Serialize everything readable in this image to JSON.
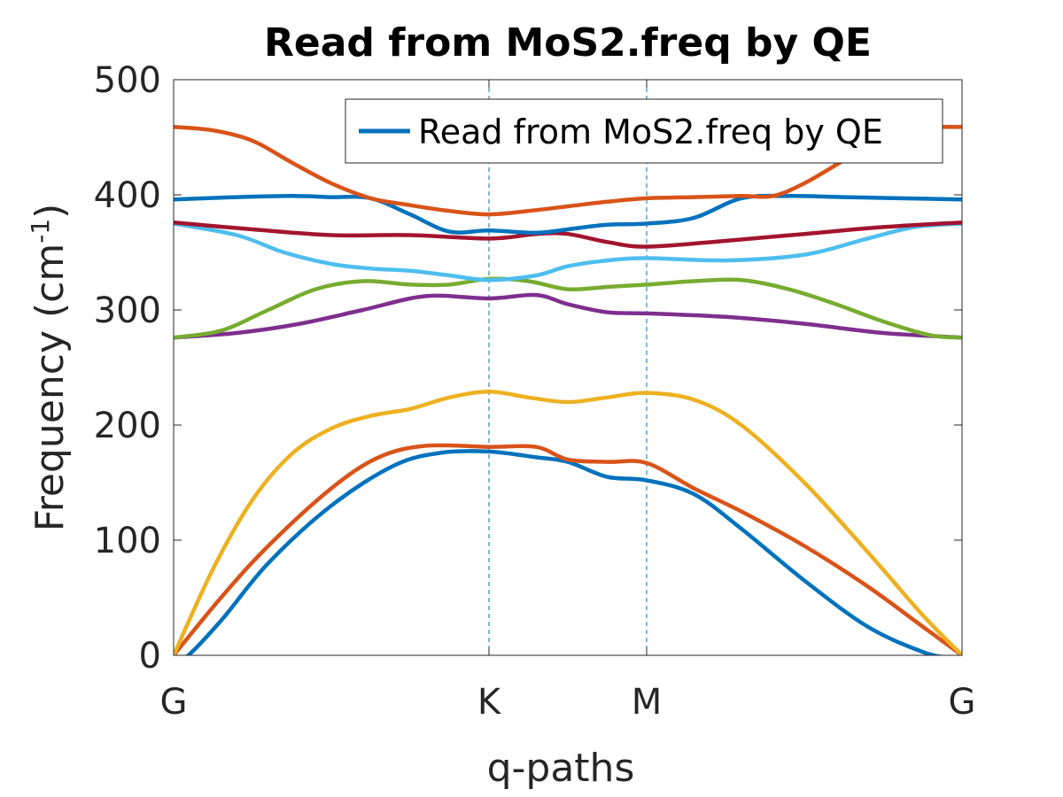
{
  "chart_data": {
    "type": "line",
    "title": "Read from MoS2.freq by QE",
    "xlabel": "q-paths",
    "ylabel_main": "Frequency (cm",
    "ylabel_sup": "-1",
    "ylabel_close": ")",
    "ylim": [
      0,
      500
    ],
    "xlim": [
      0,
      1
    ],
    "yticks": [
      0,
      100,
      200,
      300,
      400,
      500
    ],
    "ytick_labels": [
      "0",
      "100",
      "200",
      "300",
      "400",
      "500"
    ],
    "xticks": [
      0,
      0.4,
      0.6,
      1.0
    ],
    "xtick_labels": [
      "G",
      "K",
      "M",
      "G"
    ],
    "high_symmetry_lines": [
      0.4,
      0.6
    ],
    "grid": false,
    "legend": {
      "placement": "top-right",
      "entries": [
        "Read from MoS2.freq by QE"
      ],
      "entry_color": "#0072BD"
    },
    "series": [
      {
        "color": "#0072BD",
        "x": [
          0,
          0.015,
          0.06,
          0.12,
          0.2,
          0.28,
          0.34,
          0.4,
          0.46,
          0.5,
          0.55,
          0.6,
          0.66,
          0.72,
          0.8,
          0.88,
          0.95,
          0.985,
          1.0
        ],
        "y": [
          0,
          -2,
          30,
          80,
          130,
          165,
          176,
          177,
          172,
          168,
          155,
          152,
          140,
          110,
          65,
          25,
          3,
          -2,
          0
        ]
      },
      {
        "color": "#D95319",
        "x": [
          0,
          0.06,
          0.12,
          0.2,
          0.26,
          0.32,
          0.4,
          0.46,
          0.5,
          0.55,
          0.6,
          0.66,
          0.72,
          0.8,
          0.88,
          0.95,
          1.0
        ],
        "y": [
          0,
          50,
          95,
          145,
          172,
          182,
          181,
          181,
          170,
          168,
          167,
          145,
          125,
          95,
          60,
          25,
          0
        ]
      },
      {
        "color": "#EDB120",
        "x": [
          0,
          0.05,
          0.1,
          0.15,
          0.2,
          0.25,
          0.3,
          0.35,
          0.4,
          0.45,
          0.5,
          0.55,
          0.6,
          0.66,
          0.72,
          0.8,
          0.88,
          0.95,
          1.0
        ],
        "y": [
          0,
          75,
          135,
          175,
          197,
          208,
          214,
          224,
          229,
          224,
          220,
          224,
          228,
          222,
          200,
          150,
          90,
          35,
          0
        ]
      },
      {
        "color": "#7E2F8E",
        "x": [
          0,
          0.08,
          0.16,
          0.24,
          0.32,
          0.4,
          0.46,
          0.5,
          0.55,
          0.6,
          0.7,
          0.8,
          0.9,
          1.0
        ],
        "y": [
          276,
          280,
          288,
          300,
          312,
          310,
          313,
          305,
          298,
          297,
          294,
          288,
          280,
          276
        ]
      },
      {
        "color": "#77AC30",
        "x": [
          0,
          0.06,
          0.12,
          0.18,
          0.24,
          0.3,
          0.35,
          0.4,
          0.45,
          0.5,
          0.55,
          0.6,
          0.66,
          0.72,
          0.78,
          0.84,
          0.9,
          0.96,
          1.0
        ],
        "y": [
          276,
          282,
          300,
          318,
          325,
          322,
          322,
          327,
          325,
          318,
          320,
          322,
          325,
          326,
          318,
          305,
          290,
          278,
          276
        ]
      },
      {
        "color": "#4DBEEE",
        "x": [
          0,
          0.08,
          0.14,
          0.2,
          0.25,
          0.3,
          0.35,
          0.4,
          0.46,
          0.5,
          0.55,
          0.6,
          0.7,
          0.8,
          0.88,
          0.94,
          1.0
        ],
        "y": [
          375,
          365,
          350,
          340,
          336,
          334,
          330,
          326,
          330,
          338,
          343,
          345,
          343,
          348,
          362,
          372,
          375
        ]
      },
      {
        "color": "#A2142F",
        "x": [
          0,
          0.1,
          0.2,
          0.3,
          0.4,
          0.46,
          0.5,
          0.55,
          0.6,
          0.7,
          0.8,
          0.9,
          1.0
        ],
        "y": [
          376,
          370,
          365,
          365,
          362,
          366,
          366,
          359,
          355,
          360,
          366,
          372,
          376
        ]
      },
      {
        "color": "#0072BD",
        "x": [
          0,
          0.08,
          0.15,
          0.2,
          0.25,
          0.3,
          0.35,
          0.4,
          0.46,
          0.5,
          0.55,
          0.6,
          0.66,
          0.72,
          0.78,
          0.85,
          0.92,
          1.0
        ],
        "y": [
          396,
          398,
          399,
          398,
          397,
          383,
          368,
          369,
          367,
          370,
          374,
          375,
          380,
          397,
          399,
          398,
          397,
          396
        ]
      },
      {
        "color": "#D95319",
        "x": [
          0,
          0.05,
          0.1,
          0.15,
          0.2,
          0.25,
          0.3,
          0.35,
          0.4,
          0.45,
          0.5,
          0.55,
          0.6,
          0.66,
          0.72,
          0.76,
          0.8,
          0.85,
          0.9,
          0.95,
          1.0
        ],
        "y": [
          459,
          456,
          447,
          428,
          410,
          397,
          391,
          386,
          383,
          386,
          390,
          394,
          397,
          398,
          399,
          399,
          410,
          430,
          450,
          458,
          459
        ]
      }
    ]
  }
}
